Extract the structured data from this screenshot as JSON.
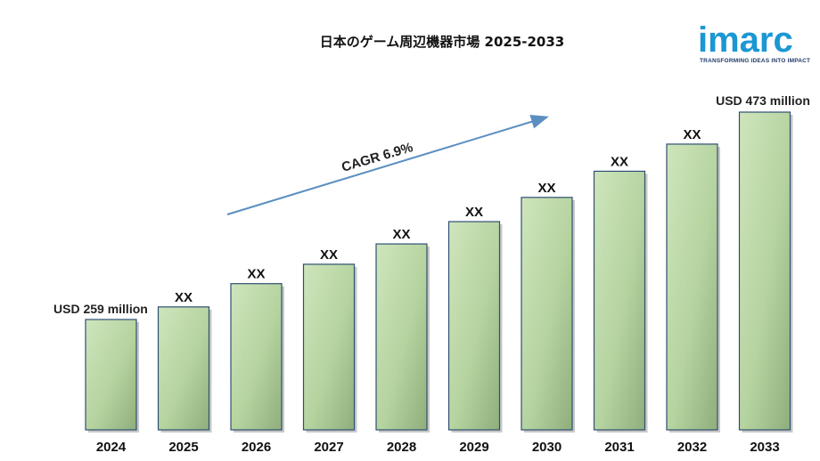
{
  "chart_data": {
    "type": "bar",
    "title": "日本のゲーム周辺機器市場 2025-2033",
    "categories": [
      "2024",
      "2025",
      "2026",
      "2027",
      "2028",
      "2029",
      "2030",
      "2031",
      "2032",
      "2033"
    ],
    "values": [
      259,
      272,
      296,
      316,
      337,
      360,
      385,
      412,
      440,
      473
    ],
    "data_labels": [
      "",
      "XX",
      "XX",
      "XX",
      "XX",
      "XX",
      "XX",
      "XX",
      "XX",
      ""
    ],
    "first_label": "USD 259 million",
    "last_label": "USD 473 million",
    "cagr_label": "CAGR 6.9%",
    "xlabel": "",
    "ylabel": "",
    "grid": false,
    "bar_color": "#b5d39f",
    "bar_border_color": "#2e4f73",
    "arrow_color": "#5b8fc0"
  },
  "logo": {
    "name": "imarc",
    "tagline": "TRANSFORMING IDEAS INTO IMPACT",
    "color": "#1b97d4",
    "tagline_color": "#1f3a68"
  }
}
